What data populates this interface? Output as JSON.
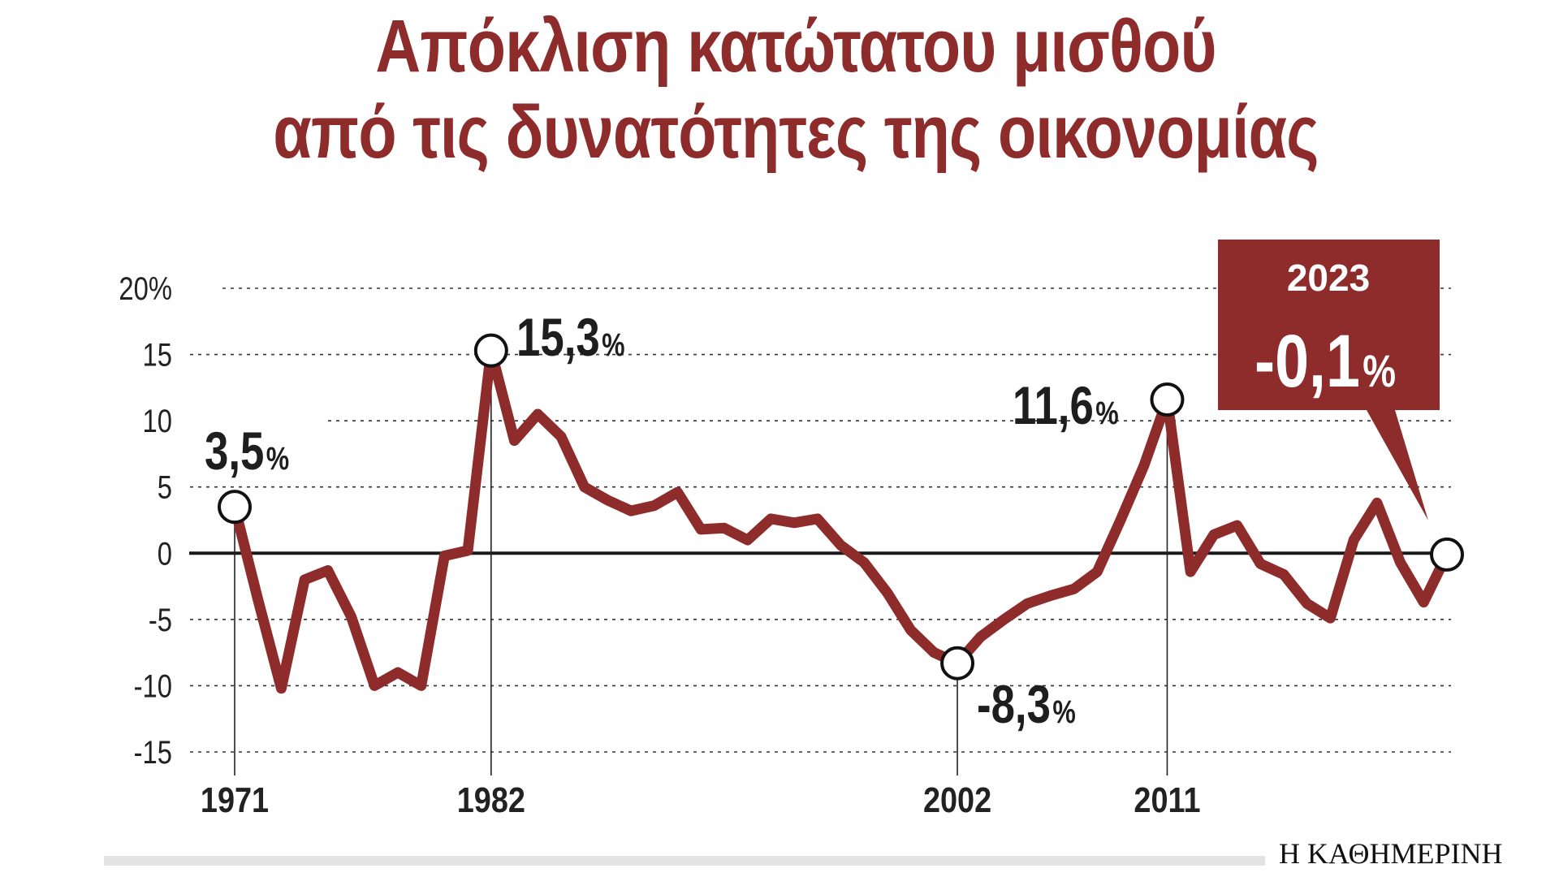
{
  "title_lines": [
    "Απόκλιση κατώτατου μισθού",
    "από τις δυνατότητες της οικονομίας"
  ],
  "source": "Η ΚΑΘΗΜΕΡΙΝΗ",
  "colors": {
    "line": "#8e2b2b",
    "title": "#8e2b2b",
    "callout": "#8e2b2b",
    "zero_line": "#1a1a1a",
    "grid": "#333333"
  },
  "chart_data": {
    "type": "line",
    "title": "Απόκλιση κατώτατου μισθού από τις δυνατότητες της οικονομίας",
    "xlabel": "",
    "ylabel": "",
    "ylim": [
      -15,
      20
    ],
    "xlim": [
      1971,
      2023
    ],
    "grid": "dotted horizontal",
    "y_ticks": [
      "20%",
      "15",
      "10",
      "5",
      "0",
      "-5",
      "-10",
      "-15"
    ],
    "y_tick_values": [
      20,
      15,
      10,
      5,
      0,
      -5,
      -10,
      -15
    ],
    "x_ticks": [
      "1971",
      "1982",
      "2002",
      "2011"
    ],
    "x_tick_values": [
      1971,
      1982,
      2002,
      2011
    ],
    "series": [
      {
        "x": [
          1971,
          1972,
          1973,
          1974,
          1975,
          1976,
          1977,
          1978,
          1979,
          1980,
          1981,
          1982,
          1983,
          1984,
          1985,
          1986,
          1987,
          1988,
          1989,
          1990,
          1991,
          1992,
          1993,
          1994,
          1995,
          1996,
          1997,
          1998,
          1999,
          2000,
          2001,
          2002,
          2003,
          2004,
          2005,
          2006,
          2007,
          2008,
          2009,
          2010,
          2011,
          2012,
          2013,
          2014,
          2015,
          2016,
          2017,
          2018,
          2019,
          2020,
          2021,
          2022,
          2023
        ],
        "values": [
          3.5,
          -3.5,
          -10.2,
          -2,
          -1.3,
          -4.8,
          -10,
          -9,
          -10,
          -0.2,
          0.2,
          15.3,
          8.5,
          10.5,
          8.8,
          5,
          4,
          3.2,
          3.6,
          4.6,
          1.8,
          1.9,
          1,
          2.6,
          2.3,
          2.6,
          0.6,
          -0.7,
          -3,
          -5.8,
          -7.5,
          -8.3,
          -6.3,
          -5,
          -3.8,
          -3.2,
          -2.7,
          -1.4,
          2.5,
          6.6,
          11.6,
          -1.4,
          1.4,
          2.1,
          -0.8,
          -1.6,
          -3.8,
          -4.9,
          1,
          3.8,
          -0.7,
          -3.7,
          -0.1
        ]
      }
    ],
    "annotations": [
      {
        "x": 1971,
        "y": 3.5,
        "value": "3,5",
        "unit": "%"
      },
      {
        "x": 1982,
        "y": 15.3,
        "value": "15,3",
        "unit": "%"
      },
      {
        "x": 2002,
        "y": -8.3,
        "value": "-8,3",
        "unit": "%"
      },
      {
        "x": 2011,
        "y": 11.6,
        "value": "11,6",
        "unit": "%"
      }
    ],
    "callout": {
      "x": 2023,
      "y": -0.1,
      "year": "2023",
      "value": "-0,1",
      "unit": "%"
    }
  }
}
